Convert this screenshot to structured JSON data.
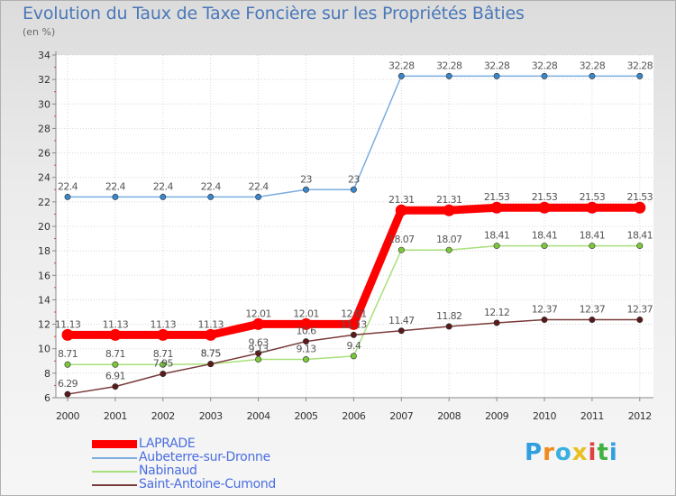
{
  "chart_data": {
    "type": "line",
    "title": "Evolution du Taux de Taxe Foncière sur les Propriétés Bâties",
    "unit": "(en %)",
    "categories": [
      "2000",
      "2001",
      "2002",
      "2003",
      "2004",
      "2005",
      "2006",
      "2007",
      "2008",
      "2009",
      "2010",
      "2011",
      "2012"
    ],
    "ylim": [
      6,
      34
    ],
    "yticks": [
      6,
      8,
      10,
      12,
      14,
      16,
      18,
      20,
      22,
      24,
      26,
      28,
      30,
      32,
      34
    ],
    "series": [
      {
        "name": "Aubeterre-sur-Dronne",
        "color": "#7aaee0",
        "marker": "#3a86c8",
        "values": [
          22.4,
          22.4,
          22.4,
          22.4,
          22.4,
          23,
          23,
          32.28,
          32.28,
          32.28,
          32.28,
          32.28,
          32.28
        ],
        "labels": [
          "22.4",
          "22.4",
          "22.4",
          "22.4",
          "22.4",
          "23",
          "23",
          "32.28",
          "32.28",
          "32.28",
          "32.28",
          "32.28",
          "32.28"
        ]
      },
      {
        "name": "Nabinaud",
        "color": "#a8e07a",
        "marker": "#7cc83a",
        "values": [
          8.71,
          8.71,
          8.71,
          8.75,
          9.13,
          9.13,
          9.4,
          18.07,
          18.07,
          18.41,
          18.41,
          18.41,
          18.41
        ],
        "labels": [
          "8.71",
          "8.71",
          "8.71",
          "8.75",
          "9.13",
          "9.13",
          "9.4",
          "18.07",
          "18.07",
          "18.41",
          "18.41",
          "18.41",
          "18.41"
        ]
      },
      {
        "name": "Saint-Antoine-Cumond",
        "color": "#7a3a3a",
        "marker": "#5a1a1a",
        "values": [
          6.29,
          6.91,
          7.95,
          8.75,
          9.63,
          10.6,
          11.13,
          11.47,
          11.82,
          12.12,
          12.37,
          12.37,
          12.37
        ],
        "labels": [
          "6.29",
          "6.91",
          "7.95",
          "8.75",
          "9.63",
          "10.6",
          "11.13",
          "11.47",
          "11.82",
          "12.12",
          "12.37",
          "12.37",
          "12.37"
        ]
      },
      {
        "name": "LAPRADE",
        "color": "#ff0000",
        "marker": "#ff0000",
        "values": [
          11.13,
          11.13,
          11.13,
          11.13,
          12.01,
          12.01,
          12.01,
          21.31,
          21.31,
          21.53,
          21.53,
          21.53,
          21.53
        ],
        "labels": [
          "11.13",
          "11.13",
          "11.13",
          "11.13",
          "12.01",
          "12.01",
          "12.01",
          "21.31",
          "21.31",
          "21.53",
          "21.53",
          "21.53",
          "21.53"
        ]
      }
    ],
    "legend": [
      "LAPRADE",
      "Aubeterre-sur-Dronne",
      "Nabinaud",
      "Saint-Antoine-Cumond"
    ]
  },
  "logo": {
    "text": "Proxiti"
  }
}
